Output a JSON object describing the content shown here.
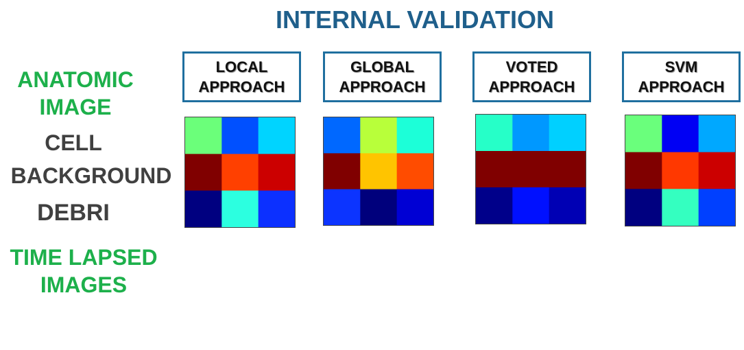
{
  "title": "INTERNAL VALIDATION",
  "left_labels": {
    "anatomic_line1": "ANATOMIC",
    "anatomic_line2": "IMAGE",
    "cell": "CELL",
    "background": "BACKGROUND",
    "debri": "DEBRI",
    "time_line1": "TIME LAPSED",
    "time_line2": "IMAGES"
  },
  "colors": {
    "title": "#1f5f8b",
    "green_labels": "#1db04b",
    "gray_labels": "#404040",
    "box_border": "#1f6f9f"
  },
  "panels": [
    {
      "line1": "LOCAL",
      "line2": "APPROACH"
    },
    {
      "line1": "GLOBAL",
      "line2": "APPROACH"
    },
    {
      "line1": "VOTED",
      "line2": "APPROACH"
    },
    {
      "line1": "SVM",
      "line2": "APPROACH"
    }
  ],
  "chart_data": [
    {
      "type": "heatmap",
      "colormap": "jet",
      "colors": [
        [
          "#6bff7a",
          "#0050ff",
          "#00d4ff"
        ],
        [
          "#800000",
          "#ff4000",
          "#cc0000"
        ],
        [
          "#000080",
          "#2cffe0",
          "#0c30ff"
        ]
      ]
    },
    {
      "type": "heatmap",
      "colormap": "jet",
      "colors": [
        [
          "#0068ff",
          "#b8ff3a",
          "#1cffd8"
        ],
        [
          "#800000",
          "#ffc400",
          "#ff4c00"
        ],
        [
          "#0c34ff",
          "#00007c",
          "#0000d4"
        ]
      ]
    },
    {
      "type": "heatmap",
      "colormap": "jet",
      "colors": [
        [
          "#26ffc8",
          "#0098ff",
          "#00d0ff"
        ],
        [
          "#800000",
          "#800000",
          "#800000"
        ],
        [
          "#00008a",
          "#0010ff",
          "#0000b4"
        ]
      ]
    },
    {
      "type": "heatmap",
      "colormap": "jet",
      "colors": [
        [
          "#6aff7c",
          "#0000f4",
          "#00a8ff"
        ],
        [
          "#800000",
          "#ff3800",
          "#cc0000"
        ],
        [
          "#000080",
          "#34ffc0",
          "#0040ff"
        ]
      ]
    }
  ]
}
